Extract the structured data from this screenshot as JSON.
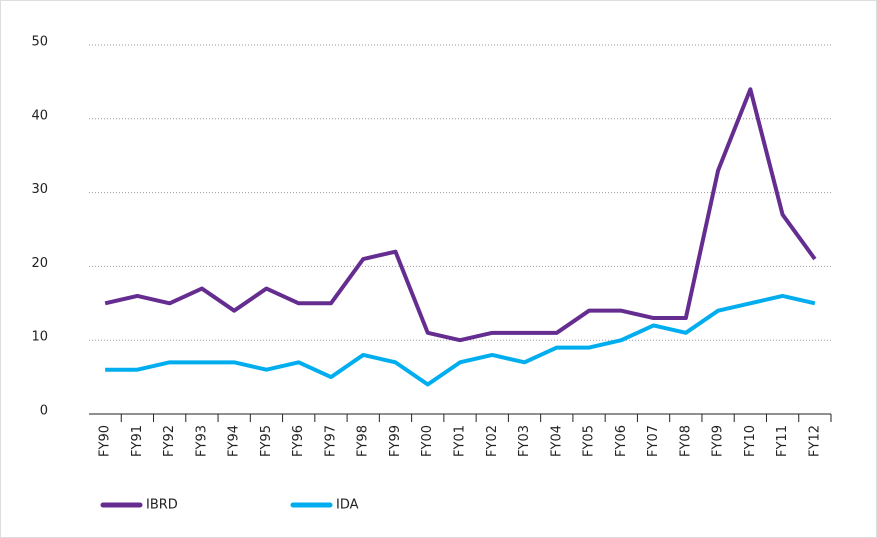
{
  "chart_data": {
    "type": "line",
    "categories": [
      "FY90",
      "FY91",
      "FY92",
      "FY93",
      "FY94",
      "FY95",
      "FY96",
      "FY97",
      "FY98",
      "FY99",
      "FY00",
      "FY01",
      "FY02",
      "FY03",
      "FY04",
      "FY05",
      "FY06",
      "FY07",
      "FY08",
      "FY09",
      "FY10",
      "FY11",
      "FY12"
    ],
    "series": [
      {
        "name": "IBRD",
        "color": "#652d90",
        "values": [
          15,
          16,
          15,
          17,
          14,
          17,
          15,
          15,
          21,
          22,
          11,
          10,
          11,
          11,
          11,
          14,
          14,
          13,
          13,
          33,
          44,
          27,
          21
        ]
      },
      {
        "name": "IDA",
        "color": "#00aeef",
        "values": [
          6,
          6,
          7,
          7,
          7,
          6,
          7,
          5,
          8,
          7,
          4,
          7,
          8,
          7,
          9,
          9,
          10,
          12,
          11,
          14,
          15,
          16,
          15
        ]
      }
    ],
    "ylim": [
      0,
      50
    ],
    "yticks": [
      0,
      10,
      20,
      30,
      40,
      50
    ],
    "grid": true,
    "legend": "bottom-left"
  }
}
